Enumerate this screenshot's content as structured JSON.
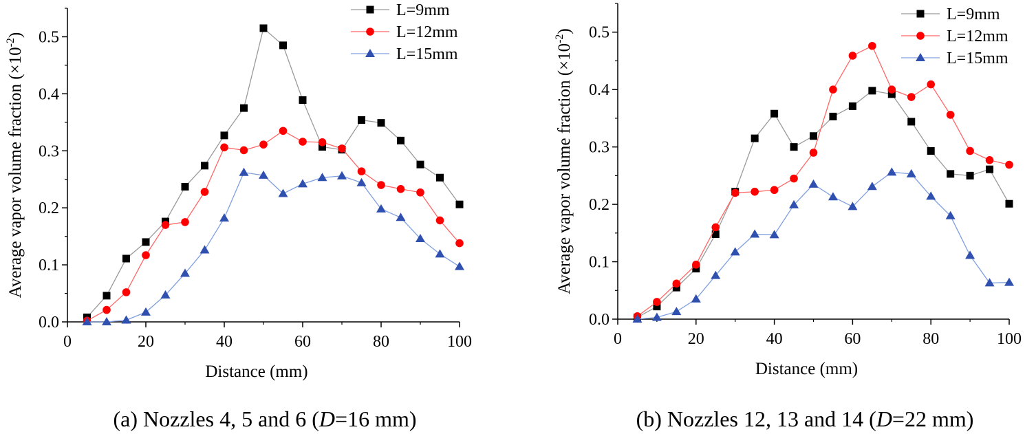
{
  "chart_data": [
    {
      "type": "line",
      "caption": {
        "pre": "(a) Nozzles 4, 5 and 6 (",
        "italic": "D",
        "post": "=16 mm)"
      },
      "xlabel": "Distance (mm)",
      "ylabel": "Average vapor volume fraction (×10",
      "ylabel_sup": "-2",
      "ylabel_close": ")",
      "xlim": [
        0,
        100
      ],
      "ylim": [
        0,
        0.55
      ],
      "xticks": [
        "0",
        "20",
        "40",
        "60",
        "80",
        "100"
      ],
      "yticks": [
        "0.0",
        "0.1",
        "0.2",
        "0.3",
        "0.4",
        "0.5"
      ],
      "legend_position": "top-right",
      "grid": false,
      "x": [
        5,
        10,
        15,
        20,
        25,
        30,
        35,
        40,
        45,
        50,
        55,
        60,
        65,
        70,
        75,
        80,
        85,
        90,
        95,
        100
      ],
      "series": [
        {
          "name": "L=9mm",
          "marker": "square",
          "line_color": "#9a9a9a",
          "marker_color": "#000000",
          "values": [
            0.008,
            0.046,
            0.111,
            0.14,
            0.176,
            0.237,
            0.274,
            0.327,
            0.375,
            0.515,
            0.485,
            0.389,
            0.307,
            0.302,
            0.354,
            0.349,
            0.318,
            0.276,
            0.253,
            0.206
          ]
        },
        {
          "name": "L=12mm",
          "marker": "circle",
          "line_color": "#ff6666",
          "marker_color": "#ff0000",
          "values": [
            0.002,
            0.021,
            0.052,
            0.117,
            0.17,
            0.175,
            0.228,
            0.306,
            0.301,
            0.311,
            0.335,
            0.316,
            0.315,
            0.304,
            0.264,
            0.24,
            0.233,
            0.227,
            0.178,
            0.138
          ]
        },
        {
          "name": "L=15mm",
          "marker": "triangle",
          "line_color": "#7f9fdf",
          "marker_color": "#3050b0",
          "values": [
            0.0,
            0.0,
            0.003,
            0.017,
            0.047,
            0.085,
            0.126,
            0.182,
            0.262,
            0.257,
            0.225,
            0.242,
            0.253,
            0.256,
            0.244,
            0.198,
            0.183,
            0.146,
            0.119,
            0.097
          ]
        }
      ]
    },
    {
      "type": "line",
      "caption": {
        "pre": "(b) Nozzles 12, 13 and 14 (",
        "italic": "D",
        "post": "=22 mm)"
      },
      "xlabel": "Distance (mm)",
      "ylabel": "Average vapor volume fraction (×10",
      "ylabel_sup": "-2",
      "ylabel_close": ")",
      "xlim": [
        0,
        100
      ],
      "ylim": [
        0,
        0.55
      ],
      "xticks": [
        "0",
        "20",
        "40",
        "60",
        "80",
        "100"
      ],
      "yticks": [
        "0.0",
        "0.1",
        "0.2",
        "0.3",
        "0.4",
        "0.5"
      ],
      "legend_position": "top-right",
      "grid": false,
      "x": [
        5,
        10,
        15,
        20,
        25,
        30,
        35,
        40,
        45,
        50,
        55,
        60,
        65,
        70,
        75,
        80,
        85,
        90,
        95,
        100
      ],
      "series": [
        {
          "name": "L=9mm",
          "marker": "square",
          "line_color": "#9a9a9a",
          "marker_color": "#000000",
          "values": [
            0.003,
            0.022,
            0.055,
            0.088,
            0.148,
            0.222,
            0.315,
            0.358,
            0.3,
            0.319,
            0.353,
            0.371,
            0.398,
            0.392,
            0.344,
            0.293,
            0.253,
            0.25,
            0.261,
            0.201
          ]
        },
        {
          "name": "L=12mm",
          "marker": "circle",
          "line_color": "#ff6666",
          "marker_color": "#ff0000",
          "values": [
            0.005,
            0.03,
            0.062,
            0.095,
            0.16,
            0.22,
            0.222,
            0.225,
            0.245,
            0.29,
            0.4,
            0.459,
            0.476,
            0.4,
            0.387,
            0.409,
            0.356,
            0.293,
            0.277,
            0.269
          ]
        },
        {
          "name": "L=15mm",
          "marker": "triangle",
          "line_color": "#7f9fdf",
          "marker_color": "#3050b0",
          "values": [
            0.0,
            0.003,
            0.013,
            0.035,
            0.076,
            0.117,
            0.148,
            0.147,
            0.199,
            0.235,
            0.213,
            0.196,
            0.231,
            0.256,
            0.253,
            0.214,
            0.18,
            0.111,
            0.063,
            0.064
          ]
        }
      ]
    }
  ]
}
